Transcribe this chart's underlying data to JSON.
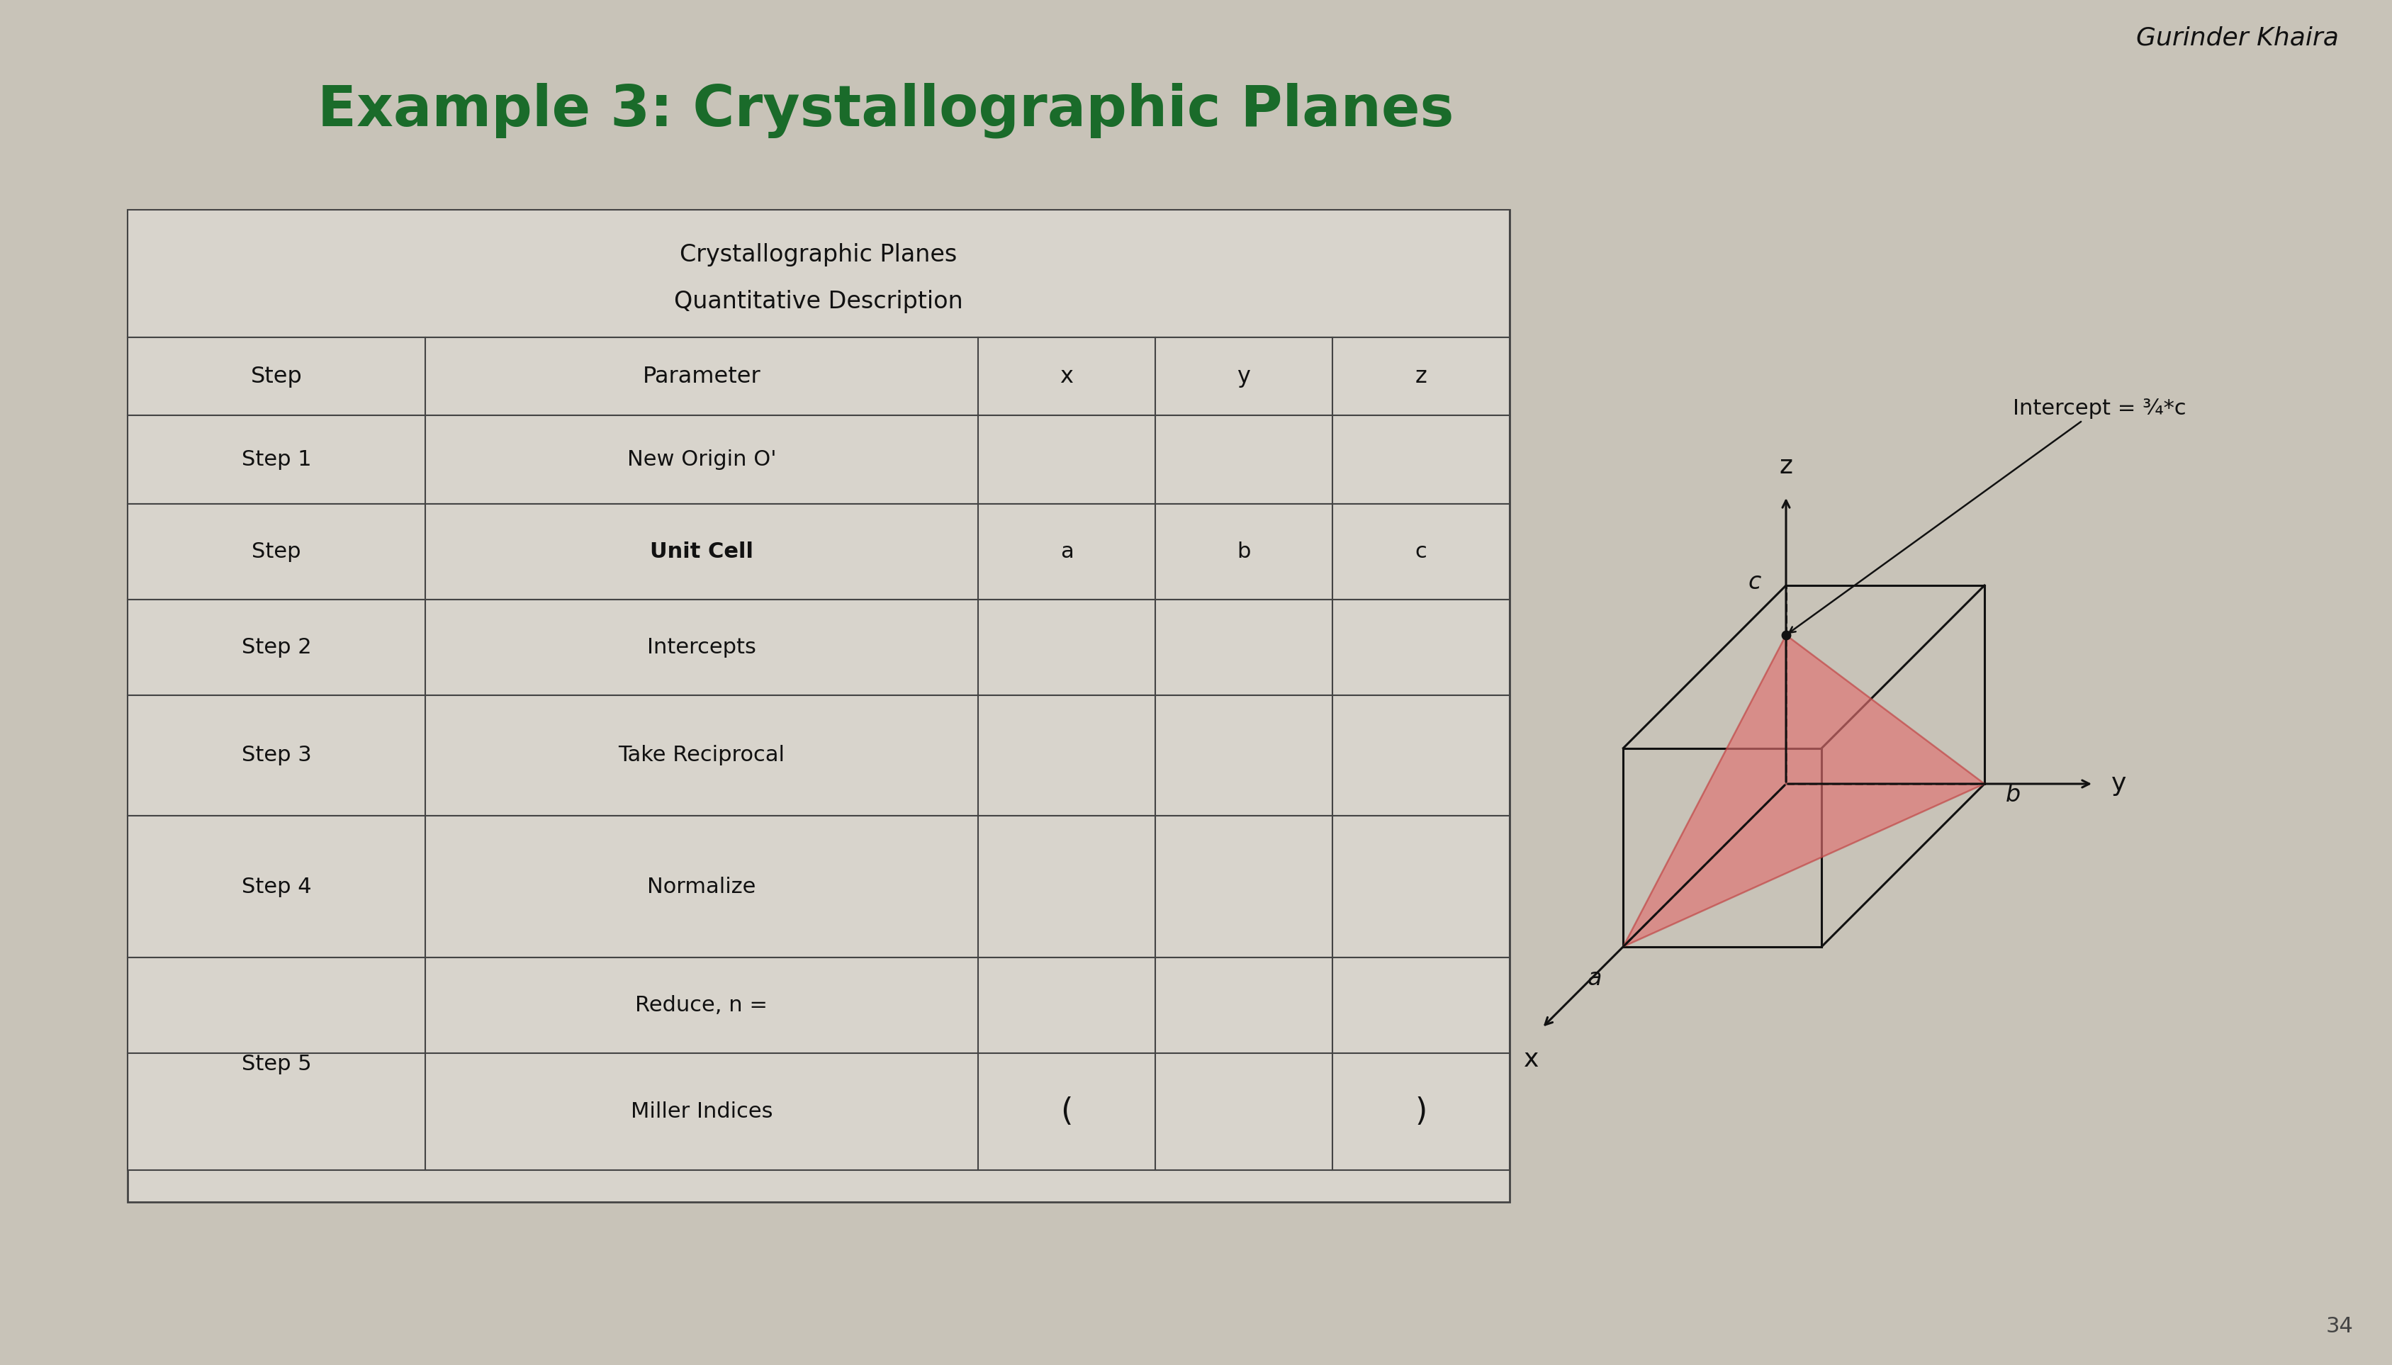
{
  "title": "Example 3: Crystallographic Planes",
  "title_color": "#1a6b2a",
  "author": "Gurinder Khaira",
  "page_number": "34",
  "table_title_line1": "Crystallographic Planes",
  "table_title_line2": "Quantitative Description",
  "table_headers": [
    "Step",
    "Parameter",
    "x",
    "y",
    "z"
  ],
  "intercept_label": "Intercept = ¾*c",
  "bg_color": "#c8c4bc",
  "table_bg": "#d8d4cc",
  "paper_bg": "#c8c3b8"
}
